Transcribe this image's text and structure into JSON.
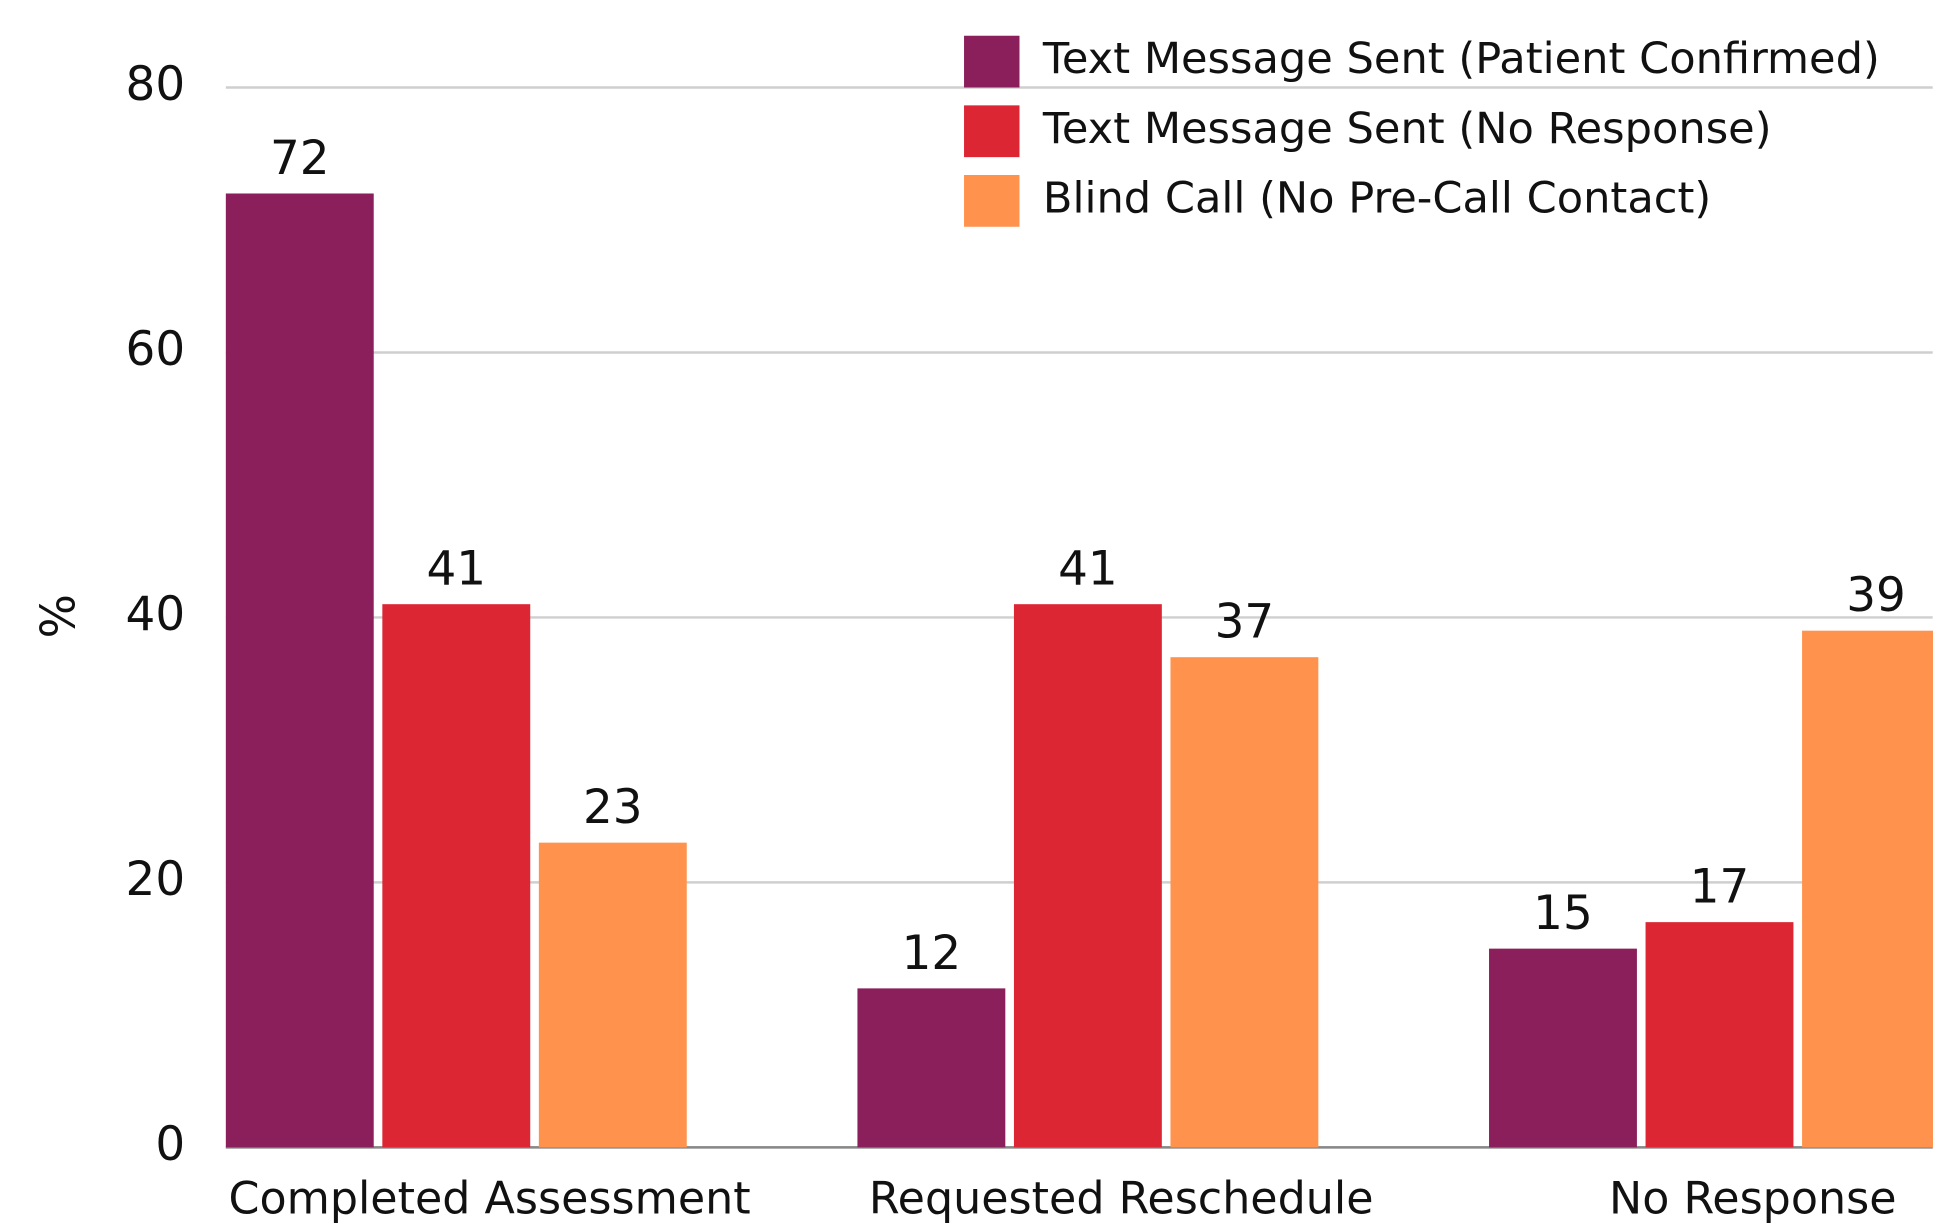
{
  "chart_data": {
    "type": "bar",
    "y_label": "%",
    "categories": [
      "Completed Assessment",
      "Requested Reschedule",
      "No Response"
    ],
    "series": [
      {
        "name": "Text Message Sent (Patient Confirmed)",
        "color": "#8b1f5c",
        "values": [
          72,
          12,
          15
        ]
      },
      {
        "name": "Text Message Sent (No Response)",
        "color": "#dc2633",
        "values": [
          41,
          41,
          17
        ]
      },
      {
        "name": "Blind Call (No Pre-Call Contact)",
        "color": "#ff934d",
        "values": [
          23,
          37,
          39
        ]
      }
    ],
    "ylim": [
      0,
      80
    ],
    "yticks": [
      0,
      20,
      40,
      60,
      80
    ],
    "grid": true,
    "legend": "top-right"
  }
}
